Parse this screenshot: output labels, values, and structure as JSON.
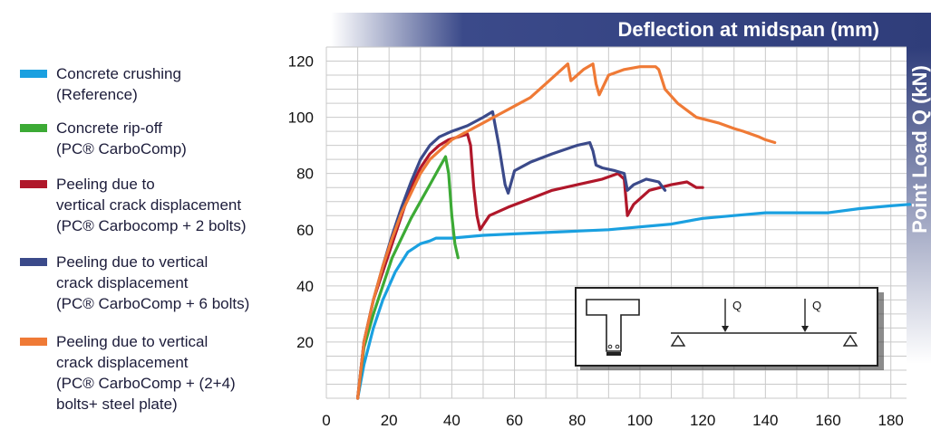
{
  "legend": [
    {
      "lines": [
        "Concrete crushing",
        "(Reference)"
      ],
      "color": "#1aa0e0"
    },
    {
      "lines": [
        "Concrete rip-off",
        "(PC® CarboComp)"
      ],
      "color": "#3caa35"
    },
    {
      "lines": [
        "Peeling due to",
        "vertical crack displacement",
        "(PC® Carbocomp + 2 bolts)"
      ],
      "color": "#b0172a"
    },
    {
      "lines": [
        "Peeling due to vertical",
        "crack displacement",
        "(PC® CarboComp + 6 bolts)"
      ],
      "color": "#3b4a8a"
    },
    {
      "lines": [
        "Peeling due to vertical",
        "crack displacement",
        "(PC® CarboComp + (2+4)",
        "bolts+ steel plate)"
      ],
      "color": "#ef7a36"
    }
  ],
  "chart_data": {
    "type": "line",
    "title": "",
    "xlabel": "Deflection at midspan (mm)",
    "ylabel": "Point Load Q (kN)",
    "xlim": [
      0,
      185
    ],
    "ylim": [
      0,
      125
    ],
    "x_ticks": [
      "0",
      "20",
      "40",
      "60",
      "80",
      "100",
      "120",
      "140",
      "160",
      "180"
    ],
    "y_ticks": [
      "20",
      "40",
      "60",
      "80",
      "100",
      "120"
    ],
    "grid": true,
    "legend_position": "left",
    "series": [
      {
        "name": "Concrete crushing (Reference)",
        "color": "#1aa0e0",
        "x": [
          10,
          12,
          15,
          18,
          22,
          26,
          30,
          33,
          35,
          40,
          50,
          60,
          70,
          80,
          90,
          100,
          110,
          120,
          130,
          140,
          150,
          160,
          170,
          180,
          186
        ],
        "y": [
          0,
          12,
          25,
          35,
          45,
          52,
          55,
          56,
          57,
          57,
          58,
          58.5,
          59,
          59.5,
          60,
          61,
          62,
          64,
          65,
          66,
          66,
          66,
          67.5,
          68.5,
          69
        ]
      },
      {
        "name": "Concrete rip-off (PC® CarboComp)",
        "color": "#3caa35",
        "x": [
          10,
          12,
          15,
          18,
          21,
          24,
          27,
          30,
          33,
          36,
          38,
          39,
          40,
          41,
          42
        ],
        "y": [
          0,
          18,
          30,
          40,
          50,
          57,
          64,
          70,
          76,
          82,
          86,
          80,
          65,
          55,
          50
        ]
      },
      {
        "name": "Peeling due to vertical crack displacement (PC® Carbocomp + 2 bolts)",
        "color": "#b0172a",
        "x": [
          10,
          12,
          15,
          18,
          21,
          24,
          27,
          30,
          33,
          36,
          39,
          42,
          45,
          46,
          47,
          48,
          49,
          52,
          58,
          65,
          72,
          80,
          88,
          93,
          95,
          96,
          98,
          103,
          110,
          115,
          118,
          120
        ],
        "y": [
          0,
          20,
          35,
          45,
          55,
          65,
          75,
          82,
          87,
          90,
          92,
          93,
          94,
          90,
          75,
          65,
          60,
          65,
          68,
          71,
          74,
          76,
          78,
          80,
          78,
          65,
          69,
          74,
          76,
          77,
          75,
          75
        ]
      },
      {
        "name": "Peeling due to vertical crack displacement (PC® CarboComp + 6 bolts)",
        "color": "#3b4a8a",
        "x": [
          10,
          12,
          15,
          18,
          21,
          24,
          27,
          30,
          33,
          36,
          40,
          45,
          50,
          53,
          55,
          57,
          58,
          60,
          65,
          72,
          80,
          84,
          85,
          86,
          88,
          92,
          95,
          96,
          98,
          102,
          106,
          108
        ],
        "y": [
          0,
          20,
          35,
          47,
          58,
          68,
          77,
          85,
          90,
          93,
          95,
          97,
          100,
          102,
          90,
          76,
          73,
          81,
          84,
          87,
          90,
          91,
          88,
          83,
          82,
          81,
          80,
          74,
          76,
          78,
          77,
          74
        ]
      },
      {
        "name": "Peeling due to vertical crack displacement (PC® CarboComp + (2+4) bolts+ steel plate)",
        "color": "#ef7a36",
        "x": [
          10,
          12,
          15,
          18,
          21,
          24,
          27,
          30,
          33,
          36,
          40,
          45,
          50,
          55,
          60,
          65,
          70,
          75,
          77,
          78,
          82,
          85,
          86,
          87,
          90,
          95,
          100,
          105,
          106,
          108,
          112,
          118,
          125,
          130,
          133,
          138,
          140,
          143
        ],
        "y": [
          0,
          20,
          35,
          47,
          57,
          66,
          73,
          80,
          85,
          88,
          92,
          95,
          98,
          101,
          104,
          107,
          112,
          117,
          119,
          113,
          117,
          119,
          112,
          108,
          115,
          117,
          118,
          118,
          117,
          110,
          105,
          100,
          98,
          96,
          95,
          93,
          92,
          91
        ]
      }
    ]
  }
}
